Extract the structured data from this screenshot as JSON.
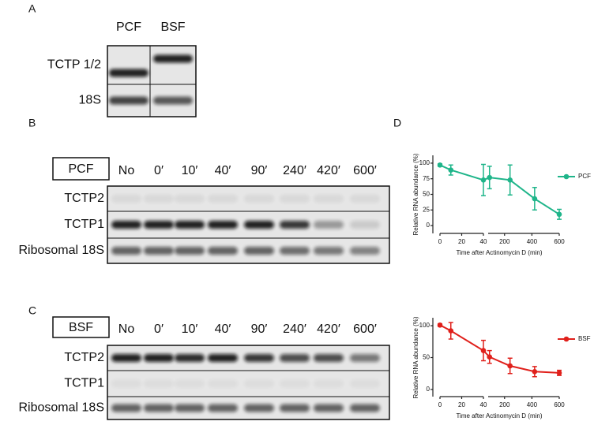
{
  "panels": [
    "A",
    "B",
    "C",
    "D"
  ],
  "blots": [
    {
      "columns": [
        "PCF",
        "BSF"
      ],
      "rows": [
        "TCTP 1/2",
        "18S"
      ]
    },
    {
      "tag": "PCF",
      "columns": [
        "No",
        "0′",
        "10′",
        "40′",
        "90′",
        "240′",
        "420′",
        "600′"
      ],
      "rows": [
        "TCTP2",
        "TCTP1",
        "Ribosomal 18S"
      ]
    },
    {
      "tag": "BSF",
      "columns": [
        "No",
        "0′",
        "10′",
        "40′",
        "90′",
        "240′",
        "420′",
        "600′"
      ],
      "rows": [
        "TCTP2",
        "TCTP1",
        "Ribosomal 18S"
      ]
    }
  ],
  "chart_data": [
    {
      "type": "line",
      "ylabel": "Relative RNA abundance (%)",
      "xlabel": "Time after Actinomycin D (min)",
      "x": [
        0,
        10,
        40,
        90,
        240,
        420,
        600
      ],
      "series": [
        {
          "name": "PCF",
          "color": "#1fb58a",
          "values": [
            97,
            89,
            73,
            77,
            73,
            43,
            18
          ],
          "errors": [
            2,
            8,
            25,
            18,
            24,
            18,
            8
          ]
        }
      ],
      "xlim_segments": [
        [
          0,
          40
        ],
        [
          80,
          600
        ]
      ],
      "xticks": [
        0,
        20,
        40,
        200,
        400,
        600
      ],
      "ylim": [
        -10,
        110
      ],
      "yticks": [
        0,
        25,
        50,
        75,
        100
      ],
      "legend": "right"
    },
    {
      "type": "line",
      "ylabel": "Relative RNA abundance (%)",
      "xlabel": "Time after Actinomycin D (min)",
      "x": [
        0,
        10,
        40,
        90,
        240,
        420,
        600
      ],
      "series": [
        {
          "name": "BSF",
          "color": "#e0201b",
          "values": [
            101,
            92,
            61,
            51,
            37,
            28,
            26
          ],
          "errors": [
            2,
            13,
            16,
            10,
            12,
            8,
            4
          ]
        }
      ],
      "xlim_segments": [
        [
          0,
          40
        ],
        [
          80,
          600
        ]
      ],
      "xticks": [
        0,
        20,
        40,
        200,
        400,
        600
      ],
      "ylim": [
        -10,
        110
      ],
      "yticks": [
        0,
        50,
        100
      ],
      "legend": "right"
    }
  ]
}
